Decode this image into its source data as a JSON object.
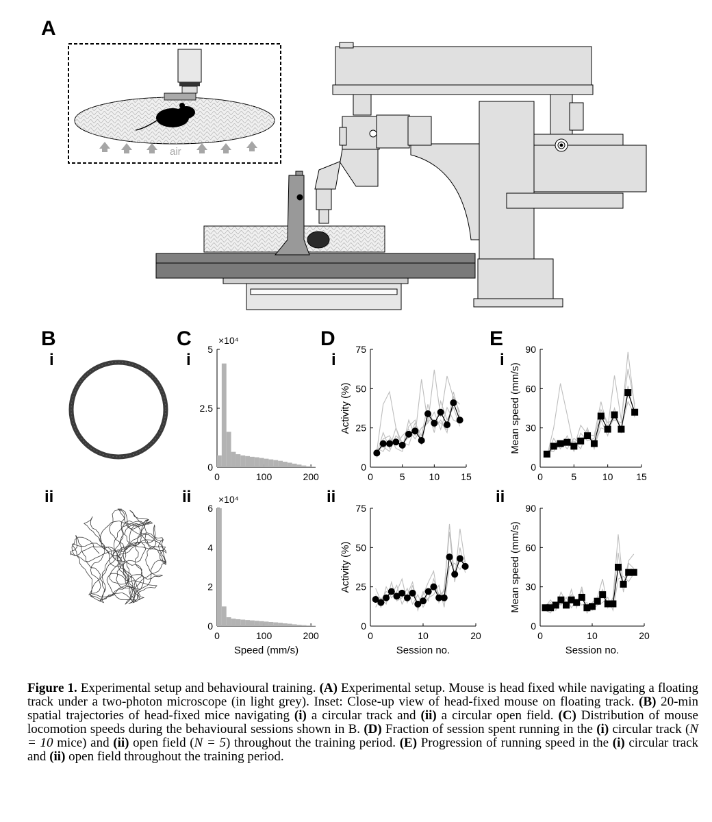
{
  "panels": {
    "A": "A",
    "B": "B",
    "C": "C",
    "D": "D",
    "E": "E",
    "i": "i",
    "ii": "ii"
  },
  "inset": {
    "label": "air"
  },
  "colors": {
    "microscope_fill": "#e0e0e0",
    "stage_dark": "#808080",
    "line_grey": "#bdbdbd",
    "hist_fill": "#b3b3b3",
    "trace_dark": "#3a3a3a"
  },
  "chart_data": [
    {
      "id": "C_i",
      "type": "bar",
      "title": "",
      "xlabel": "",
      "ylabel": "",
      "multiplier": "×10⁴",
      "xlim": [
        0,
        210
      ],
      "ylim": [
        0,
        5
      ],
      "xticks": [
        0,
        100,
        200
      ],
      "yticks": [
        0,
        2.5,
        5
      ],
      "ytick_labels": [
        "0",
        "2.5",
        "5"
      ],
      "bin_width": 10,
      "bin_starts": [
        0,
        10,
        20,
        30,
        40,
        50,
        60,
        70,
        80,
        90,
        100,
        110,
        120,
        130,
        140,
        150,
        160,
        170,
        180,
        190,
        200
      ],
      "values": [
        0.5,
        4.4,
        1.5,
        0.65,
        0.55,
        0.5,
        0.47,
        0.44,
        0.42,
        0.39,
        0.36,
        0.33,
        0.3,
        0.27,
        0.23,
        0.19,
        0.15,
        0.11,
        0.07,
        0.04,
        0.02
      ]
    },
    {
      "id": "C_ii",
      "type": "bar",
      "title": "",
      "xlabel": "Speed (mm/s)",
      "ylabel": "",
      "multiplier": "×10⁴",
      "xlim": [
        0,
        210
      ],
      "ylim": [
        0,
        6
      ],
      "xticks": [
        0,
        100,
        200
      ],
      "yticks": [
        0,
        2,
        4,
        6
      ],
      "ytick_labels": [
        "0",
        "2",
        "4",
        "6"
      ],
      "bin_width": 10,
      "bin_starts": [
        0,
        10,
        20,
        30,
        40,
        50,
        60,
        70,
        80,
        90,
        100,
        110,
        120,
        130,
        140,
        150,
        160,
        170,
        180,
        190,
        200
      ],
      "values": [
        6.0,
        1.0,
        0.45,
        0.38,
        0.35,
        0.33,
        0.31,
        0.29,
        0.27,
        0.25,
        0.23,
        0.21,
        0.19,
        0.17,
        0.14,
        0.12,
        0.09,
        0.07,
        0.05,
        0.03,
        0.02
      ]
    },
    {
      "id": "D_i",
      "type": "line",
      "title": "",
      "xlabel": "",
      "ylabel": "Activity (%)",
      "xlim": [
        0,
        15
      ],
      "ylim": [
        0,
        75
      ],
      "xticks": [
        0,
        5,
        10,
        15
      ],
      "yticks": [
        0,
        25,
        50,
        75
      ],
      "marker": "circle",
      "series": [
        {
          "name": "mean",
          "x": [
            1,
            2,
            3,
            4,
            5,
            6,
            7,
            8,
            9,
            10,
            11,
            12,
            13,
            14
          ],
          "values": [
            9,
            15,
            15,
            16,
            14,
            21,
            23,
            17,
            34,
            28,
            35,
            27,
            41,
            30
          ]
        },
        {
          "name": "mouse",
          "x": [
            1,
            2,
            3,
            4,
            5,
            6,
            7,
            8,
            9,
            10,
            11,
            12,
            13,
            14
          ],
          "values": [
            8,
            22,
            12,
            25,
            15,
            19,
            28,
            20,
            40,
            25,
            30,
            22,
            45,
            35
          ]
        },
        {
          "name": "mouse",
          "x": [
            1,
            2,
            3,
            4,
            5,
            6,
            7,
            8,
            9,
            10,
            11,
            12,
            13,
            14
          ],
          "values": [
            12,
            10,
            18,
            14,
            20,
            24,
            18,
            25,
            28,
            35,
            24,
            38,
            30,
            28
          ]
        },
        {
          "name": "mouse",
          "x": [
            1,
            2,
            3,
            4,
            5,
            6,
            7,
            8,
            9,
            10,
            11,
            12,
            13,
            14
          ],
          "values": [
            6,
            18,
            20,
            12,
            10,
            26,
            30,
            14,
            36,
            22,
            42,
            30,
            38,
            26
          ]
        },
        {
          "name": "mouse",
          "x": [
            1,
            2,
            3,
            4,
            5,
            6,
            7,
            8,
            9,
            10,
            11,
            12,
            13,
            14
          ],
          "values": [
            10,
            40,
            48,
            25,
            12,
            30,
            20,
            56,
            28,
            62,
            32,
            58,
            44,
            40
          ]
        },
        {
          "name": "mouse",
          "x": [
            1,
            2,
            3,
            4,
            5,
            6,
            7,
            8,
            9,
            10,
            11,
            12,
            13,
            14
          ],
          "values": [
            11,
            13,
            10,
            20,
            16,
            14,
            26,
            18,
            32,
            30,
            28,
            24,
            48,
            32
          ]
        }
      ]
    },
    {
      "id": "D_ii",
      "type": "line",
      "title": "",
      "xlabel": "Session no.",
      "ylabel": "Activity (%)",
      "xlim": [
        0,
        20
      ],
      "ylim": [
        0,
        75
      ],
      "xticks": [
        0,
        10,
        20
      ],
      "yticks": [
        0,
        25,
        50,
        75
      ],
      "marker": "circle",
      "series": [
        {
          "name": "mean",
          "x": [
            1,
            2,
            3,
            4,
            5,
            6,
            7,
            8,
            9,
            10,
            11,
            12,
            13,
            14,
            15,
            16,
            17,
            18
          ],
          "values": [
            17,
            15,
            18,
            22,
            19,
            21,
            18,
            21,
            14,
            16,
            22,
            25,
            18,
            18,
            44,
            33,
            43,
            38
          ]
        },
        {
          "name": "mouse",
          "x": [
            1,
            2,
            3,
            4,
            5,
            6,
            7,
            8,
            9,
            10,
            11,
            12,
            13,
            14,
            15,
            16,
            17,
            18
          ],
          "values": [
            20,
            12,
            25,
            18,
            22,
            30,
            15,
            26,
            10,
            20,
            28,
            35,
            15,
            24,
            60,
            28,
            50,
            34
          ]
        },
        {
          "name": "mouse",
          "x": [
            1,
            2,
            3,
            4,
            5,
            6,
            7,
            8,
            9,
            10,
            11,
            12,
            13,
            14,
            15,
            16,
            17,
            18
          ],
          "values": [
            12,
            18,
            14,
            28,
            16,
            18,
            24,
            14,
            20,
            12,
            18,
            20,
            26,
            12,
            38,
            40,
            36,
            42
          ]
        },
        {
          "name": "mouse",
          "x": [
            1,
            2,
            3,
            4,
            5,
            6,
            7,
            8,
            9,
            10,
            11,
            12,
            13,
            14,
            15,
            16,
            17,
            18
          ],
          "values": [
            24,
            16,
            22,
            20,
            26,
            14,
            20,
            28,
            12,
            22,
            16,
            30,
            20,
            22,
            65,
            30,
            62,
            40
          ]
        }
      ]
    },
    {
      "id": "E_i",
      "type": "line",
      "title": "",
      "xlabel": "",
      "ylabel": "Mean speed (mm/s)",
      "xlim": [
        0,
        15
      ],
      "ylim": [
        0,
        90
      ],
      "xticks": [
        0,
        5,
        10,
        15
      ],
      "yticks": [
        0,
        30,
        60,
        90
      ],
      "marker": "square",
      "series": [
        {
          "name": "mean",
          "x": [
            1,
            2,
            3,
            4,
            5,
            6,
            7,
            8,
            9,
            10,
            11,
            12,
            13,
            14
          ],
          "values": [
            10,
            16,
            18,
            19,
            16,
            20,
            24,
            18,
            39,
            29,
            40,
            29,
            57,
            42
          ]
        },
        {
          "name": "mouse",
          "x": [
            1,
            2,
            3,
            4,
            5,
            6,
            7,
            8,
            9,
            10,
            11,
            12,
            13,
            14
          ],
          "values": [
            8,
            30,
            64,
            40,
            15,
            32,
            25,
            24,
            50,
            30,
            70,
            36,
            75,
            48
          ]
        },
        {
          "name": "mouse",
          "x": [
            1,
            2,
            3,
            4,
            5,
            6,
            7,
            8,
            9,
            10,
            11,
            12,
            13,
            14
          ],
          "values": [
            12,
            12,
            20,
            14,
            22,
            18,
            30,
            14,
            36,
            24,
            45,
            26,
            62,
            38
          ]
        },
        {
          "name": "mouse",
          "x": [
            1,
            2,
            3,
            4,
            5,
            6,
            7,
            8,
            9,
            10,
            11,
            12,
            13,
            14
          ],
          "values": [
            9,
            22,
            14,
            24,
            12,
            26,
            20,
            22,
            44,
            34,
            36,
            34,
            88,
            45
          ]
        },
        {
          "name": "mouse",
          "x": [
            1,
            2,
            3,
            4,
            5,
            6,
            7,
            8,
            9,
            10,
            11,
            12,
            13,
            14
          ],
          "values": [
            11,
            14,
            16,
            18,
            20,
            14,
            28,
            16,
            30,
            28,
            38,
            30,
            50,
            40
          ]
        }
      ]
    },
    {
      "id": "E_ii",
      "type": "line",
      "title": "",
      "xlabel": "Session no.",
      "ylabel": "Mean speed (mm/s)",
      "xlim": [
        0,
        20
      ],
      "ylim": [
        0,
        90
      ],
      "xticks": [
        0,
        10,
        20
      ],
      "yticks": [
        0,
        30,
        60,
        90
      ],
      "marker": "square",
      "series": [
        {
          "name": "mean",
          "x": [
            1,
            2,
            3,
            4,
            5,
            6,
            7,
            8,
            9,
            10,
            11,
            12,
            13,
            14,
            15,
            16,
            17,
            18
          ],
          "values": [
            14,
            14,
            16,
            20,
            16,
            20,
            18,
            22,
            14,
            15,
            19,
            24,
            17,
            17,
            45,
            32,
            41,
            41
          ]
        },
        {
          "name": "mouse",
          "x": [
            1,
            2,
            3,
            4,
            5,
            6,
            7,
            8,
            9,
            10,
            11,
            12,
            13,
            14,
            15,
            16,
            17,
            18
          ],
          "values": [
            15,
            20,
            14,
            26,
            18,
            24,
            16,
            30,
            12,
            18,
            22,
            36,
            14,
            22,
            70,
            30,
            50,
            55
          ]
        },
        {
          "name": "mouse",
          "x": [
            1,
            2,
            3,
            4,
            5,
            6,
            7,
            8,
            9,
            10,
            11,
            12,
            13,
            14,
            15,
            16,
            17,
            18
          ],
          "values": [
            12,
            10,
            18,
            16,
            22,
            14,
            20,
            16,
            18,
            12,
            16,
            18,
            22,
            12,
            36,
            38,
            34,
            40
          ]
        },
        {
          "name": "mouse",
          "x": [
            1,
            2,
            3,
            4,
            5,
            6,
            7,
            8,
            9,
            10,
            11,
            12,
            13,
            14,
            15,
            16,
            17,
            18
          ],
          "values": [
            16,
            18,
            12,
            20,
            14,
            28,
            14,
            28,
            10,
            16,
            20,
            28,
            16,
            20,
            56,
            26,
            48,
            44
          ]
        }
      ]
    }
  ],
  "caption": {
    "fig": "Figure 1.",
    "t1": " Experimental setup and behavioural training. ",
    "A": "(A)",
    "t2": " Experimental setup. Mouse is head fixed while navigating a floating track under a two-photon microscope (in light grey). Inset: Close-up view of head-fixed mouse on floating track. ",
    "B": "(B)",
    "t3": " 20-min spatial trajectories of head-fixed mice navigating ",
    "i1": "(i)",
    "t4": " a circular track and ",
    "ii1": "(ii)",
    "t5": " a circular open field. ",
    "C": "(C)",
    "t6": " Distribution of mouse locomotion speeds during the behavioural sessions shown in B. ",
    "D": "(D)",
    "t7": " Fraction of session spent running in the ",
    "i2": "(i)",
    "t8": " circular track (",
    "n1": "N = 10",
    "t9": " mice) and ",
    "ii2": "(ii)",
    "t10": " open field (",
    "n2": "N = 5",
    "t11": ") throughout the training period. ",
    "E": "(E)",
    "t12": " Progression of running speed in the ",
    "i3": "(i)",
    "t13": " circular track and ",
    "ii3": "(ii)",
    "t14": " open field throughout the training period."
  }
}
